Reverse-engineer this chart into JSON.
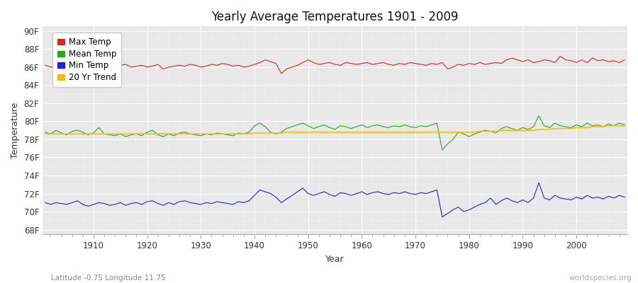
{
  "title": "Yearly Average Temperatures 1901 - 2009",
  "xlabel": "Year",
  "ylabel": "Temperature",
  "x_start": 1901,
  "x_end": 2009,
  "yticks": [
    68,
    70,
    72,
    74,
    76,
    78,
    80,
    82,
    84,
    86,
    88,
    90
  ],
  "ytick_labels": [
    "68F",
    "70F",
    "72F",
    "74F",
    "76F",
    "78F",
    "80F",
    "82F",
    "84F",
    "86F",
    "88F",
    "90F"
  ],
  "xticks": [
    1910,
    1920,
    1930,
    1940,
    1950,
    1960,
    1970,
    1980,
    1990,
    2000
  ],
  "ylim": [
    67.5,
    90.5
  ],
  "xlim": [
    1900.5,
    2009.5
  ],
  "colors": {
    "max": "#dd2222",
    "mean": "#22aa22",
    "min": "#2222dd",
    "trend": "#ffbb00",
    "fig_bg": "#ffffff",
    "plot_bg": "#e8e8e8"
  },
  "legend_labels": [
    "Max Temp",
    "Mean Temp",
    "Min Temp",
    "20 Yr Trend"
  ],
  "footer_left": "Latitude -0.75 Longitude 11.75",
  "footer_right": "worldspecies.org",
  "max_temps": [
    86.2,
    86.0,
    86.1,
    86.3,
    86.2,
    86.1,
    86.2,
    86.3,
    86.2,
    86.4,
    86.6,
    86.3,
    86.1,
    86.0,
    86.2,
    86.3,
    86.0,
    86.1,
    86.2,
    86.0,
    86.1,
    86.3,
    85.8,
    86.0,
    86.1,
    86.2,
    86.1,
    86.3,
    86.2,
    86.0,
    86.1,
    86.3,
    86.2,
    86.4,
    86.3,
    86.1,
    86.2,
    86.0,
    86.1,
    86.3,
    86.5,
    86.8,
    86.6,
    86.4,
    85.3,
    85.8,
    86.0,
    86.2,
    86.5,
    86.8,
    86.5,
    86.3,
    86.4,
    86.5,
    86.3,
    86.2,
    86.5,
    86.4,
    86.3,
    86.4,
    86.5,
    86.3,
    86.4,
    86.5,
    86.3,
    86.2,
    86.4,
    86.3,
    86.5,
    86.4,
    86.3,
    86.2,
    86.4,
    86.3,
    86.5,
    85.8,
    86.0,
    86.3,
    86.2,
    86.4,
    86.3,
    86.5,
    86.3,
    86.4,
    86.5,
    86.4,
    86.8,
    87.0,
    86.8,
    86.6,
    86.8,
    86.5,
    86.6,
    86.8,
    86.7,
    86.5,
    87.2,
    86.8,
    86.7,
    86.5,
    86.8,
    86.5,
    87.0,
    86.7,
    86.8,
    86.6,
    86.7,
    86.5,
    86.8
  ],
  "mean_temps": [
    78.8,
    78.6,
    79.0,
    78.7,
    78.5,
    78.9,
    79.0,
    78.8,
    78.5,
    78.7,
    79.3,
    78.6,
    78.5,
    78.4,
    78.6,
    78.3,
    78.5,
    78.6,
    78.4,
    78.8,
    79.0,
    78.5,
    78.3,
    78.6,
    78.4,
    78.7,
    78.8,
    78.6,
    78.5,
    78.4,
    78.6,
    78.5,
    78.7,
    78.6,
    78.5,
    78.4,
    78.7,
    78.6,
    78.8,
    79.5,
    79.8,
    79.4,
    78.8,
    78.6,
    78.8,
    79.2,
    79.4,
    79.6,
    79.8,
    79.5,
    79.2,
    79.4,
    79.6,
    79.3,
    79.1,
    79.5,
    79.4,
    79.2,
    79.4,
    79.6,
    79.3,
    79.5,
    79.6,
    79.4,
    79.3,
    79.5,
    79.4,
    79.6,
    79.4,
    79.3,
    79.5,
    79.4,
    79.6,
    79.8,
    76.8,
    77.5,
    78.0,
    78.8,
    78.6,
    78.3,
    78.6,
    78.8,
    79.0,
    78.9,
    78.7,
    79.2,
    79.4,
    79.2,
    79.0,
    79.3,
    79.1,
    79.4,
    80.6,
    79.5,
    79.3,
    79.8,
    79.5,
    79.4,
    79.3,
    79.6,
    79.4,
    79.8,
    79.5,
    79.6,
    79.4,
    79.7,
    79.5,
    79.8,
    79.6
  ],
  "min_temps": [
    71.0,
    70.8,
    71.0,
    70.9,
    70.8,
    71.0,
    71.2,
    70.8,
    70.6,
    70.8,
    71.0,
    70.9,
    70.7,
    70.8,
    71.0,
    70.7,
    70.9,
    71.0,
    70.8,
    71.1,
    71.2,
    70.9,
    70.7,
    71.0,
    70.8,
    71.1,
    71.2,
    71.0,
    70.9,
    70.8,
    71.0,
    70.9,
    71.1,
    71.0,
    70.9,
    70.8,
    71.1,
    71.0,
    71.2,
    71.8,
    72.4,
    72.2,
    72.0,
    71.6,
    71.0,
    71.4,
    71.8,
    72.2,
    72.6,
    72.0,
    71.8,
    72.0,
    72.2,
    71.9,
    71.7,
    72.1,
    72.0,
    71.8,
    72.0,
    72.2,
    71.9,
    72.1,
    72.2,
    72.0,
    71.9,
    72.1,
    72.0,
    72.2,
    72.0,
    71.9,
    72.1,
    72.0,
    72.2,
    72.4,
    69.4,
    69.8,
    70.2,
    70.5,
    70.0,
    70.2,
    70.5,
    70.8,
    71.0,
    71.5,
    70.8,
    71.2,
    71.5,
    71.2,
    71.0,
    71.3,
    71.0,
    71.5,
    73.2,
    71.5,
    71.3,
    71.8,
    71.5,
    71.4,
    71.3,
    71.6,
    71.4,
    71.8,
    71.5,
    71.6,
    71.4,
    71.7,
    71.5,
    71.8,
    71.6
  ],
  "trend_temps": [
    78.6,
    78.6,
    78.6,
    78.6,
    78.6,
    78.6,
    78.6,
    78.6,
    78.6,
    78.6,
    78.6,
    78.6,
    78.6,
    78.6,
    78.6,
    78.6,
    78.6,
    78.6,
    78.6,
    78.6,
    78.6,
    78.6,
    78.6,
    78.6,
    78.6,
    78.6,
    78.6,
    78.6,
    78.6,
    78.6,
    78.6,
    78.6,
    78.6,
    78.6,
    78.6,
    78.6,
    78.6,
    78.6,
    78.6,
    78.7,
    78.7,
    78.7,
    78.7,
    78.7,
    78.7,
    78.8,
    78.8,
    78.8,
    78.8,
    78.8,
    78.8,
    78.8,
    78.8,
    78.8,
    78.8,
    78.8,
    78.8,
    78.8,
    78.8,
    78.8,
    78.8,
    78.8,
    78.8,
    78.8,
    78.8,
    78.8,
    78.8,
    78.8,
    78.8,
    78.8,
    78.8,
    78.8,
    78.8,
    78.8,
    78.8,
    78.8,
    78.8,
    78.8,
    78.8,
    78.8,
    78.8,
    78.9,
    78.9,
    78.9,
    78.9,
    79.0,
    79.0,
    79.0,
    79.0,
    79.0,
    79.0,
    79.0,
    79.1,
    79.1,
    79.1,
    79.2,
    79.2,
    79.2,
    79.2,
    79.3,
    79.3,
    79.3,
    79.4,
    79.4,
    79.4,
    79.5,
    79.5,
    79.5,
    79.5
  ]
}
